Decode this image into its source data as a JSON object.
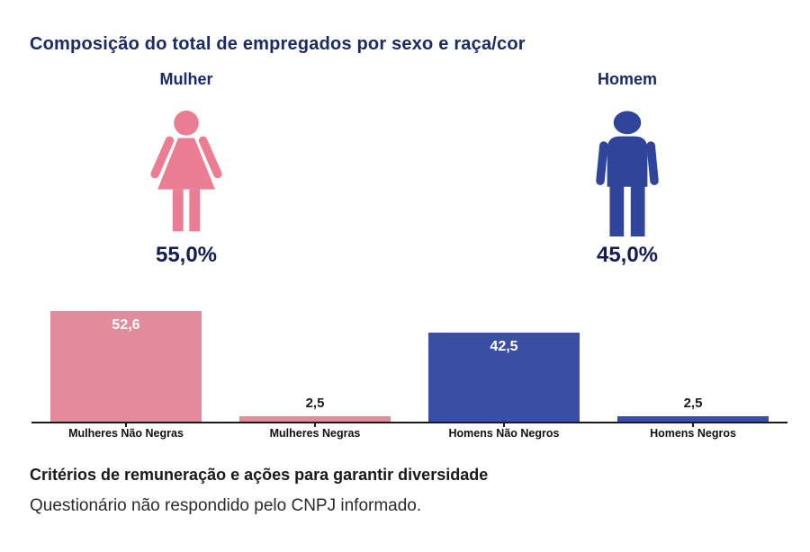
{
  "title": "Composição do total de empregados por sexo e raça/cor",
  "gender_summary": {
    "female": {
      "label": "Mulher",
      "value": "55,0%",
      "icon": "female-person-icon"
    },
    "male": {
      "label": "Homem",
      "value": "45,0%",
      "icon": "male-person-icon"
    }
  },
  "colors": {
    "navy_text": "#1a2a66",
    "percentage_text": "#151d50",
    "female_icon": "#ea7d92",
    "male_icon": "#2e459a",
    "bar_pink": "#e18b9c",
    "bar_blue": "#3a4ea3",
    "axis": "#1a1a1a"
  },
  "chart_data": {
    "type": "bar",
    "categories": [
      "Mulheres Não Negras",
      "Mulheres Negras",
      "Homens Não Negros",
      "Homens Negros"
    ],
    "values": [
      52.6,
      2.5,
      42.5,
      2.5
    ],
    "value_labels": [
      "52,6",
      "2,5",
      "42,5",
      "2,5"
    ],
    "series_colors": [
      "pink",
      "pink",
      "blue",
      "blue"
    ],
    "title": "Composição do total de empregados por sexo e raça/cor",
    "xlabel": "",
    "ylabel": "",
    "ylim": [
      0,
      55
    ],
    "grid": false,
    "legend": "none",
    "value_label_position": "inside-top for tall bars, above for short bars"
  },
  "footer": {
    "heading": "Critérios de remuneração e ações para garantir diversidade",
    "body": "Questionário não respondido pelo CNPJ informado."
  }
}
